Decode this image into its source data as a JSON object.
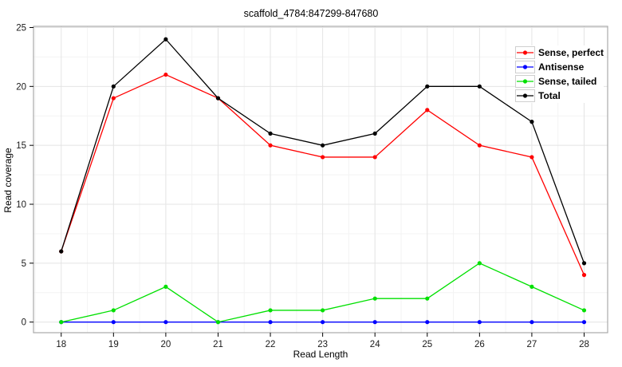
{
  "title": "scaffold_4784:847299-847680",
  "axes": {
    "xlabel": "Read Length",
    "ylabel": "Read coverage"
  },
  "chart_data": {
    "type": "line",
    "title": "scaffold_4784:847299-847680",
    "xlabel": "Read Length",
    "ylabel": "Read coverage",
    "x": [
      18,
      19,
      20,
      21,
      22,
      23,
      24,
      25,
      26,
      27,
      28
    ],
    "series": [
      {
        "name": "Sense, perfect",
        "color": "#ff0000",
        "values": [
          6,
          19,
          21,
          19,
          15,
          14,
          14,
          18,
          15,
          14,
          4
        ]
      },
      {
        "name": "Antisense",
        "color": "#0000ff",
        "values": [
          0,
          0,
          0,
          0,
          0,
          0,
          0,
          0,
          0,
          0,
          0
        ]
      },
      {
        "name": "Sense, tailed",
        "color": "#00e000",
        "values": [
          0,
          1,
          3,
          0,
          1,
          1,
          2,
          2,
          5,
          3,
          1
        ]
      },
      {
        "name": "Total",
        "color": "#000000",
        "values": [
          6,
          20,
          24,
          19,
          16,
          15,
          16,
          20,
          20,
          17,
          5
        ]
      }
    ],
    "xticks": [
      18,
      19,
      20,
      21,
      22,
      23,
      24,
      25,
      26,
      27,
      28
    ],
    "yticks": [
      0,
      5,
      10,
      15,
      20,
      25
    ],
    "xlim": [
      17.47,
      28.45
    ],
    "ylim": [
      -0.9,
      25.1
    ],
    "grid": "major+minor",
    "legend_position": "top-right"
  },
  "style": {
    "panel_border": "#a9a9a9",
    "grid_major": "#e4e4e4",
    "grid_minor": "#f3f3f3",
    "tick_color": "#000000",
    "text_color": "#1a1a1a"
  }
}
